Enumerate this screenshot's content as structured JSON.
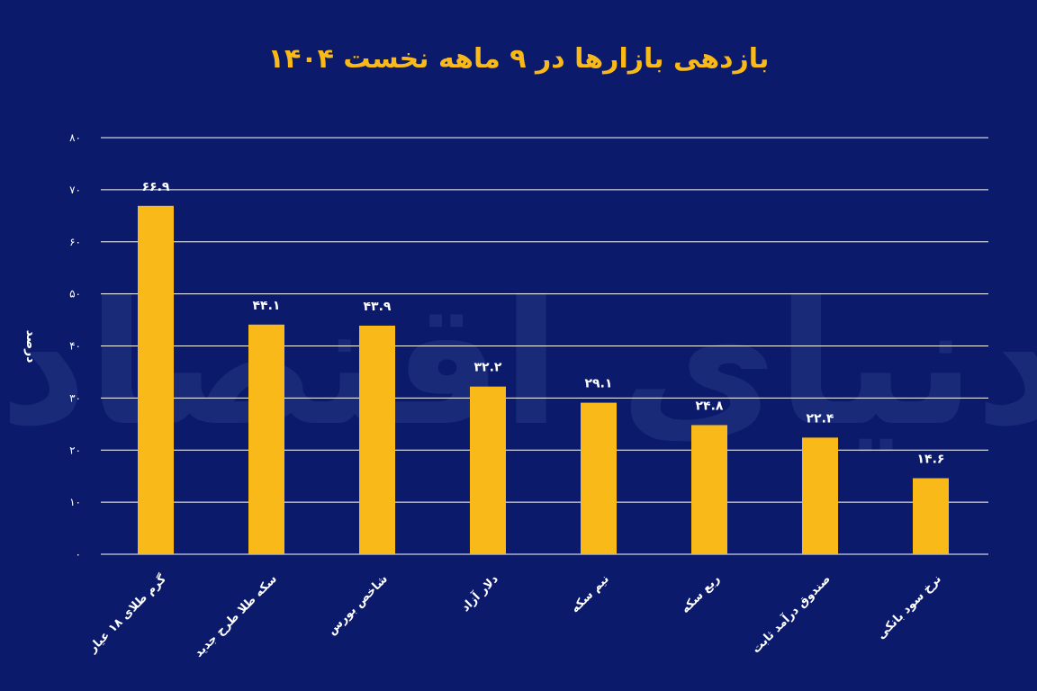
{
  "colors": {
    "background": "#0b1a6b",
    "bar": "#f9b918",
    "title": "#f9b918",
    "text": "#ffffff",
    "grid": "#ffffff",
    "watermark": "#2a3f8a"
  },
  "watermark_text": "دنیای اقتصاد",
  "chart_data": {
    "type": "bar",
    "title": "بازدهی بازارها در ۹ ماهه نخست ۱۴۰۴",
    "ylabel": "درصد",
    "xlabel": "",
    "ylim": [
      0,
      80
    ],
    "yticks": [
      "۰",
      "۱۰",
      "۲۰",
      "۳۰",
      "۴۰",
      "۵۰",
      "۶۰",
      "۷۰",
      "۸۰"
    ],
    "grid": true,
    "categories": [
      "گرم طلای ۱۸ عیار",
      "سکه طلا طرح جدید",
      "شاخص بورس",
      "دلار آزاد",
      "نیم سکه",
      "ربع سکه",
      "صندوق درآمد ثابت",
      "نرخ سود بانکی"
    ],
    "values": [
      66.9,
      44.1,
      43.9,
      32.2,
      29.1,
      24.8,
      22.4,
      14.6
    ],
    "value_labels": [
      "۶۶.۹",
      "۴۴.۱",
      "۴۳.۹",
      "۳۲.۲",
      "۲۹.۱",
      "۲۴.۸",
      "۲۲.۴",
      "۱۴.۶"
    ]
  }
}
